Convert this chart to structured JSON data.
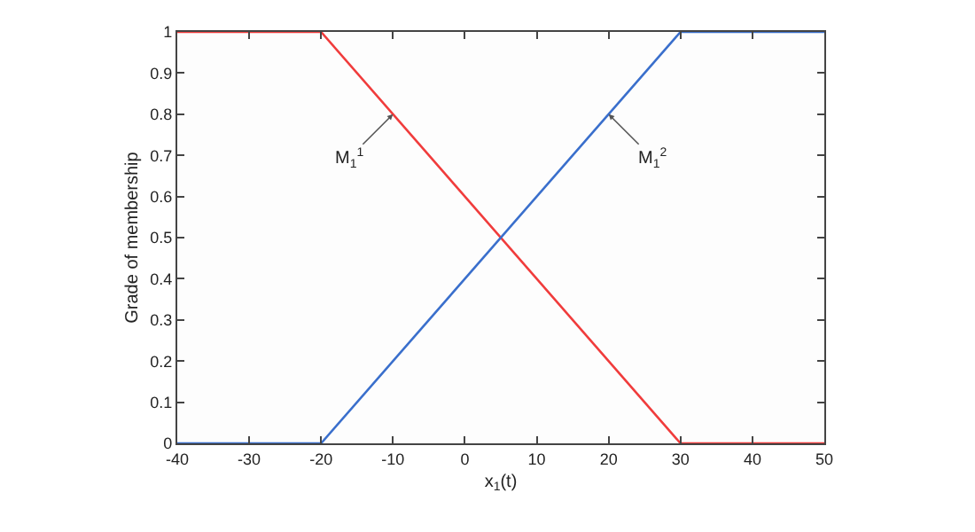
{
  "chart_data": {
    "type": "line",
    "xlabel": "x$_{1}$(t)",
    "ylabel": "Grade of membership",
    "series": [
      {
        "color": "#f03c3c",
        "x": [
          -40,
          -20,
          30,
          50
        ],
        "values": [
          1,
          1,
          0,
          0
        ]
      },
      {
        "color": "#3a6fcc",
        "x": [
          -40,
          -20,
          30,
          50
        ],
        "values": [
          0,
          0,
          1,
          1
        ]
      }
    ],
    "annotations": [
      {
        "text": "M$_{1}$$^{1}$",
        "x": -10,
        "y": 0.8
      },
      {
        "text": "M$_{1}$$^{2}$",
        "x": 20,
        "y": 0.8
      }
    ],
    "xlim": [
      -40,
      50
    ],
    "xticks": [
      -40,
      -30,
      -20,
      -10,
      0,
      10,
      20,
      30,
      40,
      50
    ],
    "ylim": [
      0,
      1
    ],
    "yticks": [
      0,
      0.1,
      0.2,
      0.3,
      0.4,
      0.5,
      0.6,
      0.7,
      0.8,
      0.9,
      1
    ],
    "marker": "none",
    "line_style": "solid"
  }
}
